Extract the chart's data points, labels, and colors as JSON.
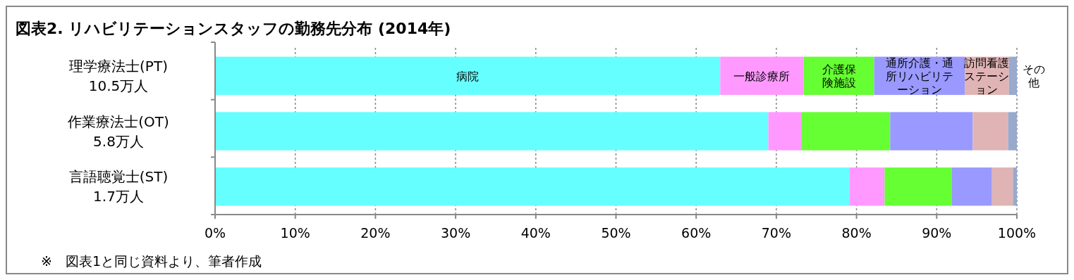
{
  "chart_data": {
    "type": "bar",
    "orientation": "horizontal",
    "stacked": true,
    "title": "図表2. リハビリテーションスタッフの勤務先分布 (2014年)",
    "categories": [
      "理学療法士(PT)\n10.5万人",
      "作業療法士(OT)\n5.8万人",
      "言語聴覚士(ST)\n1.7万人"
    ],
    "series": [
      {
        "name": "病院",
        "color": "#66ffff",
        "values": [
          63.0,
          69.0,
          79.1
        ]
      },
      {
        "name": "一般診療所",
        "color": "#ff99ff",
        "values": [
          10.4,
          4.1,
          4.4
        ]
      },
      {
        "name": "介護保険施設",
        "color": "#66ff33",
        "values": [
          8.8,
          11.1,
          8.4
        ]
      },
      {
        "name": "通所介護・通所リハビリテーション",
        "color": "#9999ff",
        "values": [
          11.3,
          10.3,
          5.0
        ]
      },
      {
        "name": "訪問看護ステーション",
        "color": "#e0b4b4",
        "values": [
          5.5,
          4.4,
          2.6
        ]
      },
      {
        "name": "その他",
        "color": "#99aacc",
        "values": [
          1.0,
          1.1,
          0.5
        ]
      }
    ],
    "xlim": [
      0,
      100
    ],
    "xticks": [
      {
        "value": 0,
        "label": "0%"
      },
      {
        "value": 10,
        "label": "10%"
      },
      {
        "value": 20,
        "label": "20%"
      },
      {
        "value": 30,
        "label": "30%"
      },
      {
        "value": 40,
        "label": "40%"
      },
      {
        "value": 50,
        "label": "50%"
      },
      {
        "value": 60,
        "label": "60%"
      },
      {
        "value": 70,
        "label": "70%"
      },
      {
        "value": 80,
        "label": "80%"
      },
      {
        "value": 90,
        "label": "90%"
      },
      {
        "value": 100,
        "label": "100%"
      }
    ],
    "grid": "x",
    "legend": false,
    "annotations": [
      "※　図表1と同じ資料より、筆者作成"
    ]
  }
}
